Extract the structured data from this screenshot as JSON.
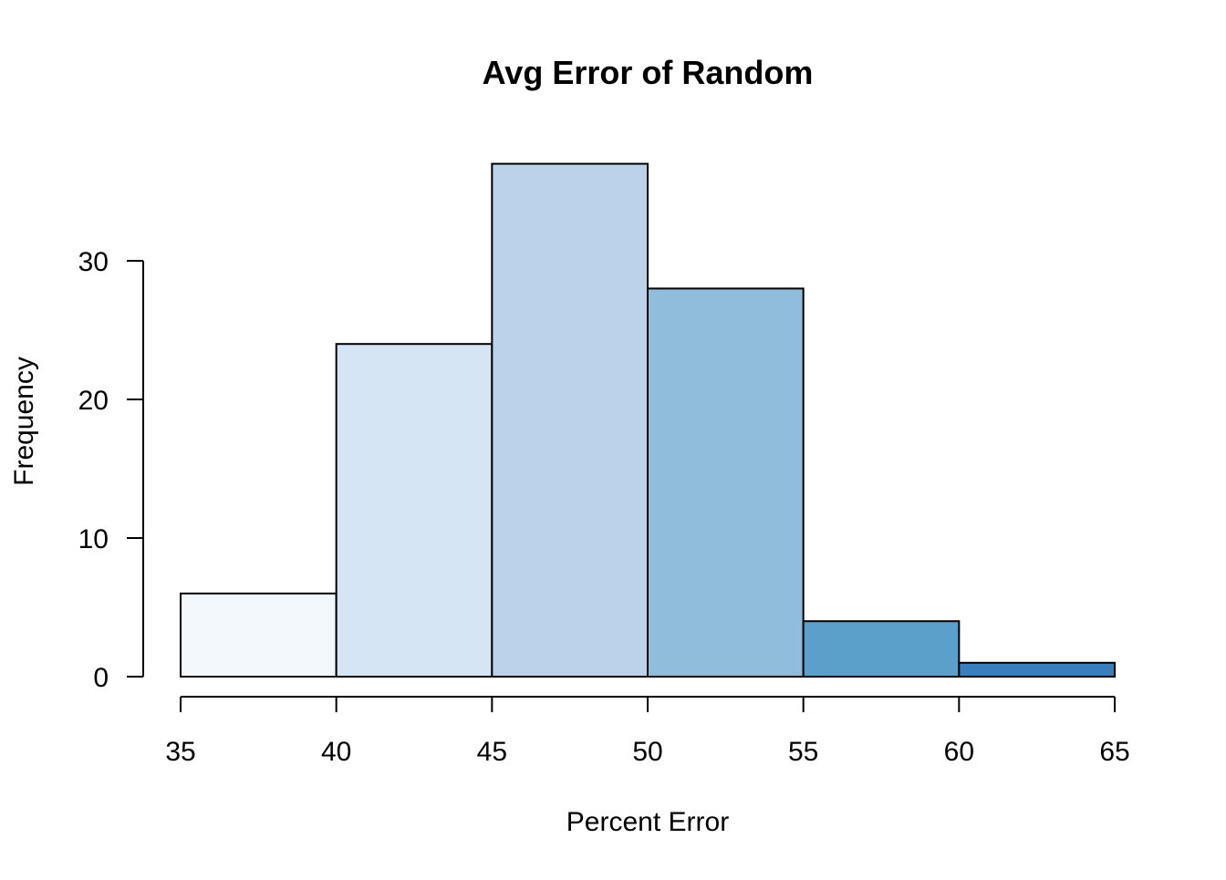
{
  "chart_data": {
    "type": "bar",
    "title": "Avg Error of Random",
    "xlabel": "Percent Error",
    "ylabel": "Frequency",
    "bins": [
      {
        "start": 35,
        "end": 40,
        "count": 6,
        "color": "#F3F8FD"
      },
      {
        "start": 40,
        "end": 45,
        "count": 24,
        "color": "#D5E5F4"
      },
      {
        "start": 45,
        "end": 50,
        "count": 37,
        "color": "#BBD2EA"
      },
      {
        "start": 50,
        "end": 55,
        "count": 28,
        "color": "#8FBDDB"
      },
      {
        "start": 55,
        "end": 60,
        "count": 4,
        "color": "#5B9FCB"
      },
      {
        "start": 60,
        "end": 65,
        "count": 1,
        "color": "#3A7FBD"
      }
    ],
    "x_ticks": [
      "35",
      "40",
      "45",
      "50",
      "55",
      "60",
      "65"
    ],
    "y_ticks": [
      "0",
      "10",
      "20",
      "30"
    ],
    "xlim": [
      35,
      65
    ],
    "ylim": [
      0,
      37
    ],
    "grid": false,
    "legend": "none"
  }
}
